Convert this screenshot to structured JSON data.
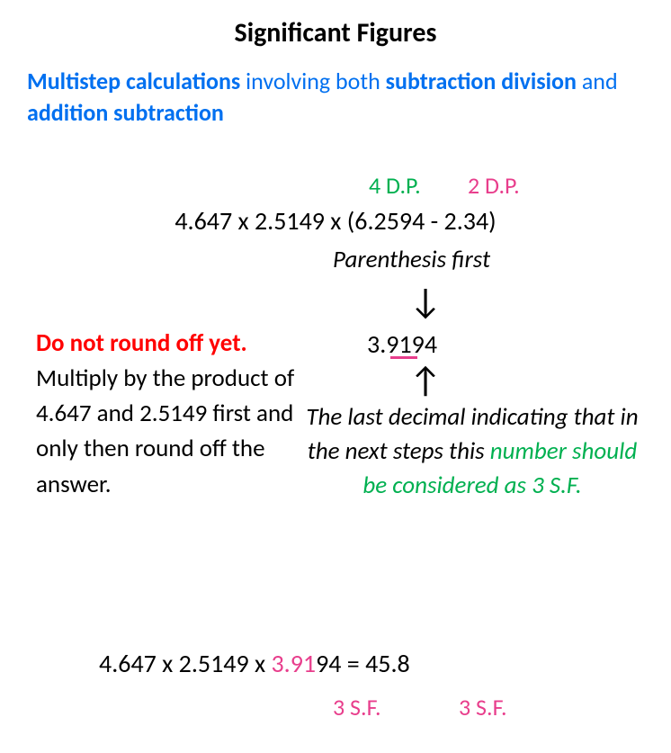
{
  "title": "Significant Figures",
  "subtitle": {
    "bold1": "Multistep calculations",
    "plain1": " involving both ",
    "bold2": "subtraction division",
    "plain2": " and ",
    "bold3": "addition subtraction"
  },
  "dp": {
    "left": "4 D.P.",
    "right": "2 D.P."
  },
  "equation1": "4.647 x 2.5149 x (6.2594 - 2.34)",
  "parenthesis_note": "Parenthesis first",
  "arrow_down": "↓",
  "arrow_up": "↑",
  "intermediate": "3.9194",
  "left_block": {
    "warn": "Do not round off yet.",
    "rest": "Multiply by the product of 4.647 and 2.5149 first and only then round off the answer."
  },
  "right_block": {
    "black": "The last decimal indicating that in the next steps this ",
    "green": "number should be considered as 3 S.F."
  },
  "equation2": {
    "pre": "4.647 x 2.5149 x ",
    "pink": "3.91",
    "post": "94 = 45.8"
  },
  "sf": {
    "left": "3 S.F.",
    "right": "3 S.F."
  },
  "colors": {
    "blue": "#0070f0",
    "green": "#00b050",
    "pink": "#e83e8c",
    "red": "#ff0000",
    "black": "#000000",
    "bg": "#ffffff"
  }
}
